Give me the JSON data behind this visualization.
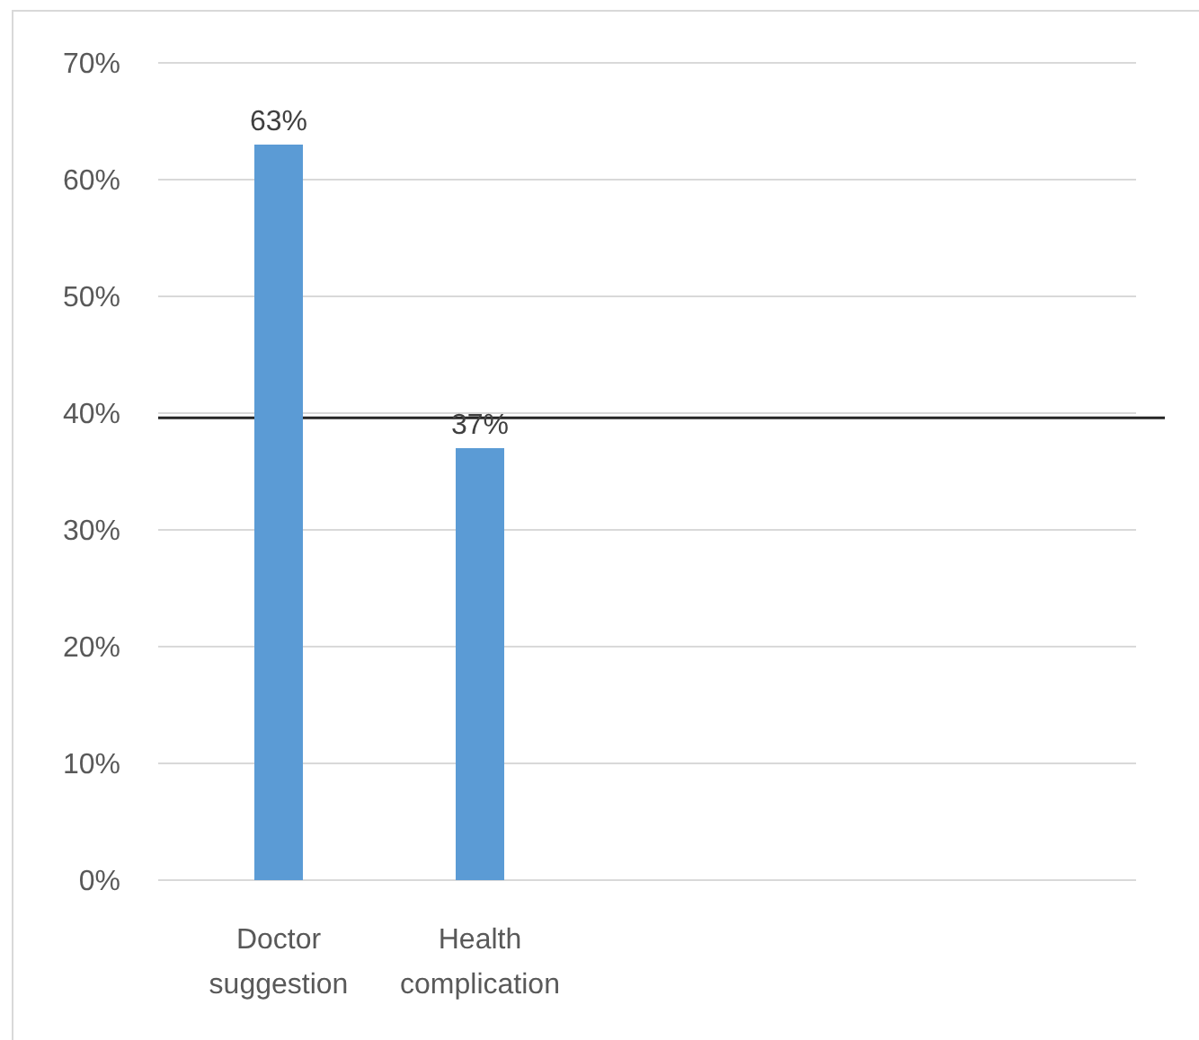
{
  "chart_data": {
    "type": "bar",
    "categories": [
      "Doctor suggestion",
      "Health complication",
      null,
      null,
      null
    ],
    "values": [
      63,
      37,
      null,
      null,
      null
    ],
    "color": "#5b9bd5",
    "value_labels": [
      "63%",
      "37%",
      null,
      null,
      null
    ],
    "ylim": [
      0,
      70
    ],
    "yticks": [
      {
        "value": 0,
        "label": "0%"
      },
      {
        "value": 10,
        "label": "10%"
      },
      {
        "value": 20,
        "label": "20%"
      },
      {
        "value": 30,
        "label": "30%"
      },
      {
        "value": 40,
        "label": "40%"
      },
      {
        "value": 50,
        "label": "50%"
      },
      {
        "value": 60,
        "label": "60%"
      },
      {
        "value": 70,
        "label": "70%"
      }
    ],
    "grid": "y",
    "ref_lines": [
      {
        "axis": "y",
        "value": 39.6,
        "color": "#262626",
        "line_style": "solid"
      }
    ]
  }
}
